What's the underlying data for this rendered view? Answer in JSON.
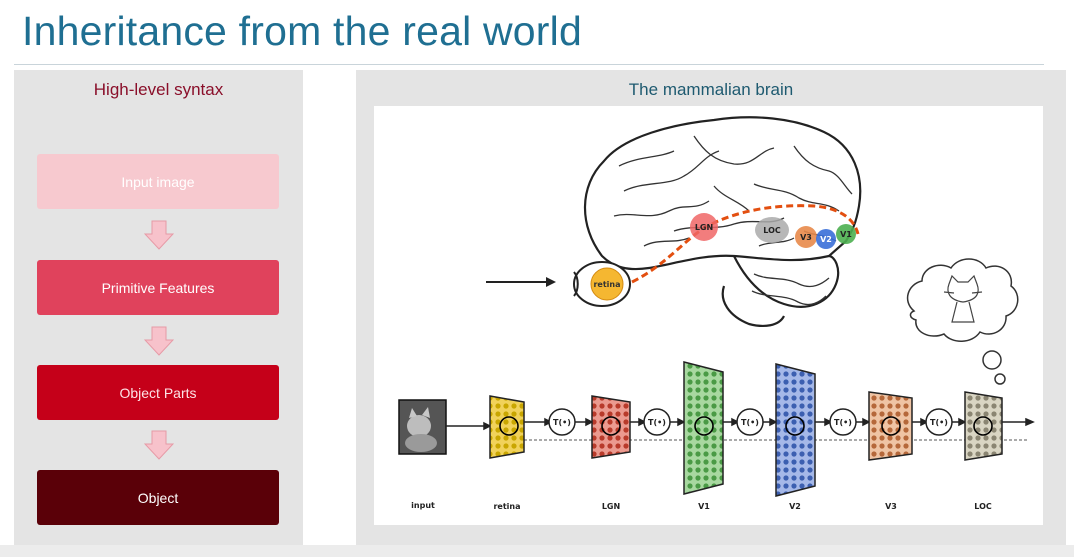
{
  "slide": {
    "title": "Inheritance from the real world"
  },
  "left_panel": {
    "heading": "High-level syntax",
    "steps": [
      {
        "label": "Input image",
        "bg": "#f7c9cf",
        "fg": "#ffffff"
      },
      {
        "label": "Primitive Features",
        "bg": "#e0425c",
        "fg": "#ffffff"
      },
      {
        "label": "Object Parts",
        "bg": "#c50019",
        "fg": "#fde3e6"
      },
      {
        "label": "Object",
        "bg": "#5a0008",
        "fg": "#ffffff"
      }
    ],
    "arrow_color": "#f7c2cb"
  },
  "right_panel": {
    "heading": "The mammalian brain",
    "brain_labels": {
      "lgn": "LGN",
      "loc": "LOC",
      "v3": "V3",
      "v2": "V2",
      "v1": "V1",
      "retina": "retina"
    },
    "transform_label": "T(•)",
    "stages": [
      "input",
      "retina",
      "LGN",
      "V1",
      "V2",
      "V3",
      "LOC"
    ]
  },
  "colors": {
    "title": "#1f6f92",
    "left_heading": "#8a0f2a",
    "right_heading": "#1e5a70",
    "panel_bg": "#e4e4e4",
    "grid_colors": [
      "#c9a600",
      "#b83a2a",
      "#4a9a45",
      "#3c5fb0",
      "#b5683a",
      "#8a8572"
    ]
  }
}
